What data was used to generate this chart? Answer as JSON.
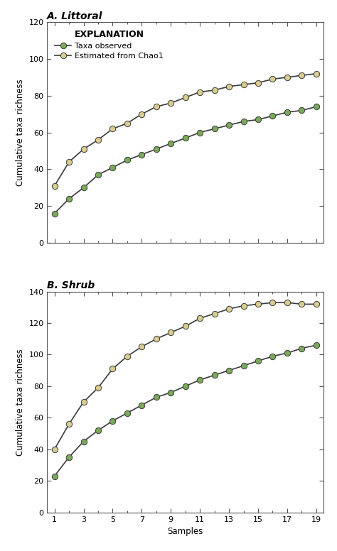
{
  "panel_A_title": "A. Littoral",
  "panel_B_title": "B. Shrub",
  "xlabel": "Samples",
  "ylabel": "Cumulative taxa richness",
  "legend_title": "EXPLANATION",
  "legend_observed": "Taxa observed",
  "legend_estimated": "Estimated from Chao1",
  "color_observed": "#7aaa59",
  "color_estimated": "#d9cc8e",
  "line_color": "#3a3a3a",
  "samples": [
    1,
    2,
    3,
    4,
    5,
    6,
    7,
    8,
    9,
    10,
    11,
    12,
    13,
    14,
    15,
    16,
    17,
    18,
    19
  ],
  "A_observed": [
    16,
    24,
    30,
    37,
    41,
    45,
    48,
    51,
    54,
    57,
    60,
    62,
    64,
    66,
    67,
    69,
    71,
    72,
    74
  ],
  "A_estimated": [
    31,
    44,
    51,
    56,
    62,
    65,
    70,
    74,
    76,
    79,
    82,
    83,
    85,
    86,
    87,
    89,
    90,
    91,
    92
  ],
  "B_observed": [
    23,
    35,
    45,
    52,
    58,
    63,
    68,
    73,
    76,
    80,
    84,
    87,
    90,
    93,
    96,
    99,
    101,
    104,
    106
  ],
  "B_estimated": [
    40,
    56,
    70,
    79,
    91,
    99,
    105,
    110,
    114,
    118,
    123,
    126,
    129,
    131,
    132,
    133,
    133,
    132,
    132
  ],
  "A_ylim": [
    0,
    120
  ],
  "A_yticks": [
    0,
    20,
    40,
    60,
    80,
    100,
    120
  ],
  "B_ylim": [
    0,
    140
  ],
  "B_yticks": [
    0,
    20,
    40,
    60,
    80,
    100,
    120,
    140
  ],
  "xticks": [
    1,
    3,
    5,
    7,
    9,
    11,
    13,
    15,
    17,
    19
  ],
  "marker_size": 6,
  "linewidth": 1.2,
  "tick_labelsize": 8,
  "axis_labelsize": 8.5,
  "title_fontsize": 10
}
